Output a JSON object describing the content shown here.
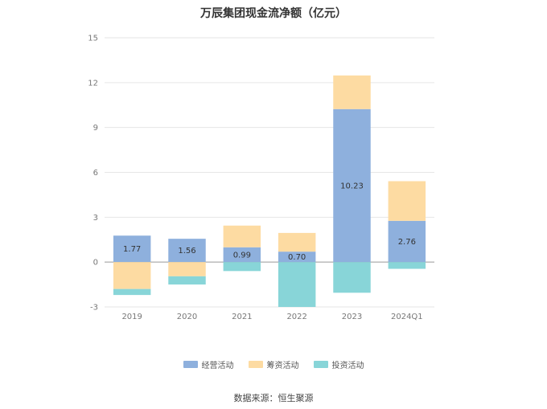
{
  "chart_data": {
    "type": "bar",
    "stacked": true,
    "title": "万辰集团现金流净额（亿元）",
    "categories": [
      "2019",
      "2020",
      "2021",
      "2022",
      "2023",
      "2024Q1"
    ],
    "ylim": [
      -3,
      15
    ],
    "yticks": [
      -3,
      0,
      3,
      6,
      9,
      12,
      15
    ],
    "grid": true,
    "legend_position": "bottom",
    "series": [
      {
        "name": "经营活动",
        "color": "#8eb0dd",
        "values": [
          1.77,
          1.56,
          0.99,
          0.7,
          10.23,
          2.76
        ],
        "labels": [
          "1.77",
          "1.56",
          "0.99",
          "0.70",
          "10.23",
          "2.76"
        ]
      },
      {
        "name": "筹资活动",
        "color": "#fddba2",
        "values": [
          -1.8,
          -0.95,
          1.45,
          1.25,
          2.25,
          2.65
        ]
      },
      {
        "name": "投资活动",
        "color": "#88d5d8",
        "values": [
          -0.4,
          -0.55,
          -0.6,
          -3.0,
          -2.05,
          -0.45
        ]
      }
    ]
  },
  "source": "数据来源：恒生聚源"
}
